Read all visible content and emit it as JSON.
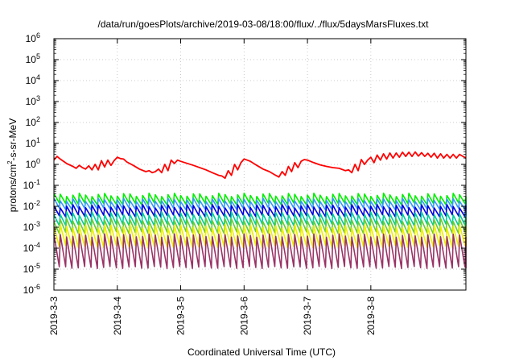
{
  "chart_data": {
    "type": "line",
    "title": "/data/run/goesPlots/archive/2019-03-08/18:00/flux/../flux/5daysMarsFluxes.txt",
    "xlabel": "Coordinated Universal Time (UTC)",
    "ylabel": {
      "base": "protons/cm",
      "sup": "2",
      "rest": "-s-sr-MeV"
    },
    "xlim": [
      0,
      6.5
    ],
    "ylim_log10": [
      -6,
      6
    ],
    "ylog": true,
    "grid": true,
    "x_ticks": [
      {
        "x": 0,
        "label": "2019-3-3"
      },
      {
        "x": 1,
        "label": "2019-3-4"
      },
      {
        "x": 2,
        "label": "2019-3-5"
      },
      {
        "x": 3,
        "label": "2019-3-6"
      },
      {
        "x": 4,
        "label": "2019-3-7"
      },
      {
        "x": 5,
        "label": "2019-3-8"
      }
    ],
    "y_ticks": [
      {
        "exp": 6,
        "label": "10",
        "sup": "6"
      },
      {
        "exp": 5,
        "label": "10",
        "sup": "5"
      },
      {
        "exp": 4,
        "label": "10",
        "sup": "4"
      },
      {
        "exp": 3,
        "label": "10",
        "sup": "3"
      },
      {
        "exp": 2,
        "label": "10",
        "sup": "2"
      },
      {
        "exp": 1,
        "label": "10",
        "sup": "1"
      },
      {
        "exp": 0,
        "label": "10",
        "sup": "0"
      },
      {
        "exp": -1,
        "label": "10",
        "sup": "-1"
      },
      {
        "exp": -2,
        "label": "10",
        "sup": "-2"
      },
      {
        "exp": -3,
        "label": "10",
        "sup": "-3"
      },
      {
        "exp": -4,
        "label": "10",
        "sup": "-4"
      },
      {
        "exp": -5,
        "label": "10",
        "sup": "-5"
      },
      {
        "exp": -6,
        "label": "10",
        "sup": "-6"
      }
    ],
    "series": [
      {
        "color": "#ff0000",
        "points": [
          [
            0,
            1.6
          ],
          [
            0.05,
            2.4
          ],
          [
            0.1,
            1.8
          ],
          [
            0.2,
            1.1
          ],
          [
            0.3,
            0.8
          ],
          [
            0.35,
            0.65
          ],
          [
            0.4,
            0.9
          ],
          [
            0.45,
            0.7
          ],
          [
            0.5,
            0.6
          ],
          [
            0.55,
            0.85
          ],
          [
            0.6,
            0.55
          ],
          [
            0.65,
            1.0
          ],
          [
            0.7,
            0.55
          ],
          [
            0.75,
            1.5
          ],
          [
            0.8,
            0.75
          ],
          [
            0.85,
            1.6
          ],
          [
            0.9,
            0.9
          ],
          [
            0.95,
            1.5
          ],
          [
            1.0,
            2.2
          ],
          [
            1.05,
            1.9
          ],
          [
            1.1,
            1.8
          ],
          [
            1.15,
            1.3
          ],
          [
            1.25,
            0.9
          ],
          [
            1.35,
            0.6
          ],
          [
            1.45,
            0.45
          ],
          [
            1.5,
            0.5
          ],
          [
            1.55,
            0.4
          ],
          [
            1.6,
            0.45
          ],
          [
            1.65,
            0.6
          ],
          [
            1.7,
            0.4
          ],
          [
            1.75,
            1.0
          ],
          [
            1.8,
            0.5
          ],
          [
            1.85,
            1.6
          ],
          [
            1.9,
            1.1
          ],
          [
            1.95,
            1.6
          ],
          [
            2.0,
            1.4
          ],
          [
            2.2,
            0.9
          ],
          [
            2.4,
            0.55
          ],
          [
            2.5,
            0.4
          ],
          [
            2.6,
            0.3
          ],
          [
            2.65,
            0.28
          ],
          [
            2.7,
            0.22
          ],
          [
            2.75,
            0.5
          ],
          [
            2.8,
            0.3
          ],
          [
            2.85,
            1.0
          ],
          [
            2.9,
            0.55
          ],
          [
            2.95,
            1.2
          ],
          [
            3.0,
            1.8
          ],
          [
            3.05,
            1.6
          ],
          [
            3.1,
            1.4
          ],
          [
            3.2,
            0.9
          ],
          [
            3.3,
            0.6
          ],
          [
            3.4,
            0.45
          ],
          [
            3.5,
            0.3
          ],
          [
            3.55,
            0.25
          ],
          [
            3.6,
            0.45
          ],
          [
            3.65,
            0.3
          ],
          [
            3.7,
            0.8
          ],
          [
            3.75,
            0.45
          ],
          [
            3.8,
            1.2
          ],
          [
            3.85,
            0.7
          ],
          [
            3.9,
            1.4
          ],
          [
            3.95,
            1.7
          ],
          [
            4.0,
            1.6
          ],
          [
            4.1,
            1.2
          ],
          [
            4.2,
            0.95
          ],
          [
            4.3,
            0.8
          ],
          [
            4.4,
            0.7
          ],
          [
            4.5,
            0.65
          ],
          [
            4.6,
            0.5
          ],
          [
            4.65,
            0.55
          ],
          [
            4.7,
            0.4
          ],
          [
            4.75,
            1.0
          ],
          [
            4.8,
            0.5
          ],
          [
            4.85,
            1.7
          ],
          [
            4.9,
            1.0
          ],
          [
            4.95,
            1.6
          ],
          [
            5.0,
            2.2
          ],
          [
            5.05,
            1.2
          ],
          [
            5.1,
            2.8
          ],
          [
            5.15,
            1.6
          ],
          [
            5.2,
            3.2
          ],
          [
            5.25,
            1.8
          ],
          [
            5.3,
            3.5
          ],
          [
            5.35,
            2.0
          ],
          [
            5.4,
            3.5
          ],
          [
            5.45,
            2.2
          ],
          [
            5.5,
            3.8
          ],
          [
            5.55,
            2.4
          ],
          [
            5.6,
            3.8
          ],
          [
            5.65,
            2.4
          ],
          [
            5.7,
            3.9
          ],
          [
            5.75,
            2.5
          ],
          [
            5.8,
            3.6
          ],
          [
            5.85,
            2.4
          ],
          [
            5.9,
            3.4
          ],
          [
            5.95,
            2.2
          ],
          [
            6.0,
            3.4
          ],
          [
            6.05,
            2.0
          ],
          [
            6.1,
            3.2
          ],
          [
            6.15,
            2.0
          ],
          [
            6.2,
            3.0
          ],
          [
            6.25,
            2.0
          ],
          [
            6.3,
            3.0
          ],
          [
            6.35,
            2.0
          ],
          [
            6.4,
            3.0
          ],
          [
            6.5,
            2.0
          ]
        ]
      },
      {
        "color": "#00ee00",
        "y_top": 0.035,
        "y_bottom": 0.013,
        "saw": true
      },
      {
        "color": "#3399ff",
        "y_top": 0.02,
        "y_bottom": 0.0075,
        "saw": true
      },
      {
        "color": "#0000dd",
        "y_top": 0.01,
        "y_bottom": 0.0035,
        "saw": true
      },
      {
        "color": "#00cc99",
        "y_top": 0.0045,
        "y_bottom": 0.0013,
        "saw": true
      },
      {
        "color": "#66cc33",
        "y_top": 0.0022,
        "y_bottom": 0.00055,
        "saw": true
      },
      {
        "color": "#eeee00",
        "y_top": 0.0011,
        "y_bottom": 0.00012,
        "saw": true
      },
      {
        "color": "#993366",
        "y_top": 0.0004,
        "y_bottom": 1.2e-05,
        "saw": true
      }
    ]
  }
}
